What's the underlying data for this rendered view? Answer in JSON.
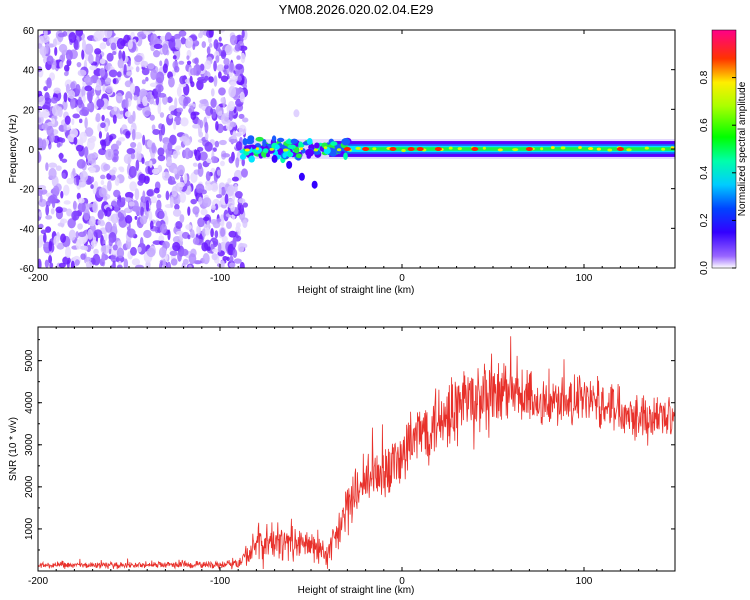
{
  "title": "YM08.2026.020.02.04.E29",
  "chart_data": [
    {
      "type": "heatmap",
      "name": "spectrogram",
      "xlabel": "Height of straight line (km)",
      "ylabel": "Frequency (Hz)",
      "xlim": [
        -200,
        150
      ],
      "ylim": [
        -60,
        60
      ],
      "x_ticks": [
        -200,
        -100,
        0,
        100
      ],
      "y_ticks": [
        60,
        40,
        20,
        0,
        -20,
        -40,
        -60
      ],
      "description_values": {
        "noise_region_x": [
          -200,
          -88
        ],
        "signal_band_center_hz": 0,
        "signal_band_halfwidth_hz": 4,
        "strong_peaks_x": [
          -30,
          -20,
          -5,
          5,
          10,
          20,
          40,
          70,
          120
        ]
      },
      "colorbar": {
        "label": "Normalized spectral amplitude",
        "ticks": [
          0.0,
          0.2,
          0.4,
          0.6,
          0.8
        ],
        "range": [
          0,
          1
        ],
        "colors": [
          "#ffffff",
          "#6a00ff",
          "#0000ff",
          "#00ffff",
          "#00ff00",
          "#ffff00",
          "#ff0000",
          "#ff00a0"
        ]
      }
    },
    {
      "type": "line",
      "name": "snr",
      "xlabel": "Height of straight line (km)",
      "ylabel": "SNR (10 * v/v)",
      "xlim": [
        -200,
        150
      ],
      "ylim": [
        0,
        5800
      ],
      "x_ticks": [
        -200,
        -100,
        0,
        100
      ],
      "y_ticks": [
        1000,
        2000,
        3000,
        4000,
        5000
      ],
      "color": "#e8302a",
      "envelope": {
        "x": [
          -200,
          -150,
          -100,
          -90,
          -80,
          -70,
          -60,
          -50,
          -45,
          -40,
          -35,
          -30,
          -25,
          -20,
          -10,
          0,
          10,
          20,
          30,
          40,
          50,
          60,
          70,
          80,
          90,
          100,
          110,
          120,
          130,
          140,
          150
        ],
        "mean": [
          130,
          140,
          150,
          170,
          600,
          700,
          650,
          600,
          550,
          350,
          900,
          1500,
          1800,
          2100,
          2400,
          2700,
          3300,
          3600,
          3900,
          4000,
          4100,
          4200,
          4100,
          4000,
          4000,
          4050,
          4000,
          3900,
          3700,
          3600,
          3800
        ],
        "spread": [
          80,
          80,
          90,
          120,
          500,
          500,
          400,
          400,
          400,
          400,
          600,
          700,
          700,
          700,
          700,
          800,
          800,
          900,
          1000,
          1100,
          1000,
          800,
          700,
          700,
          600,
          600,
          600,
          600,
          600,
          600,
          500
        ]
      }
    }
  ]
}
